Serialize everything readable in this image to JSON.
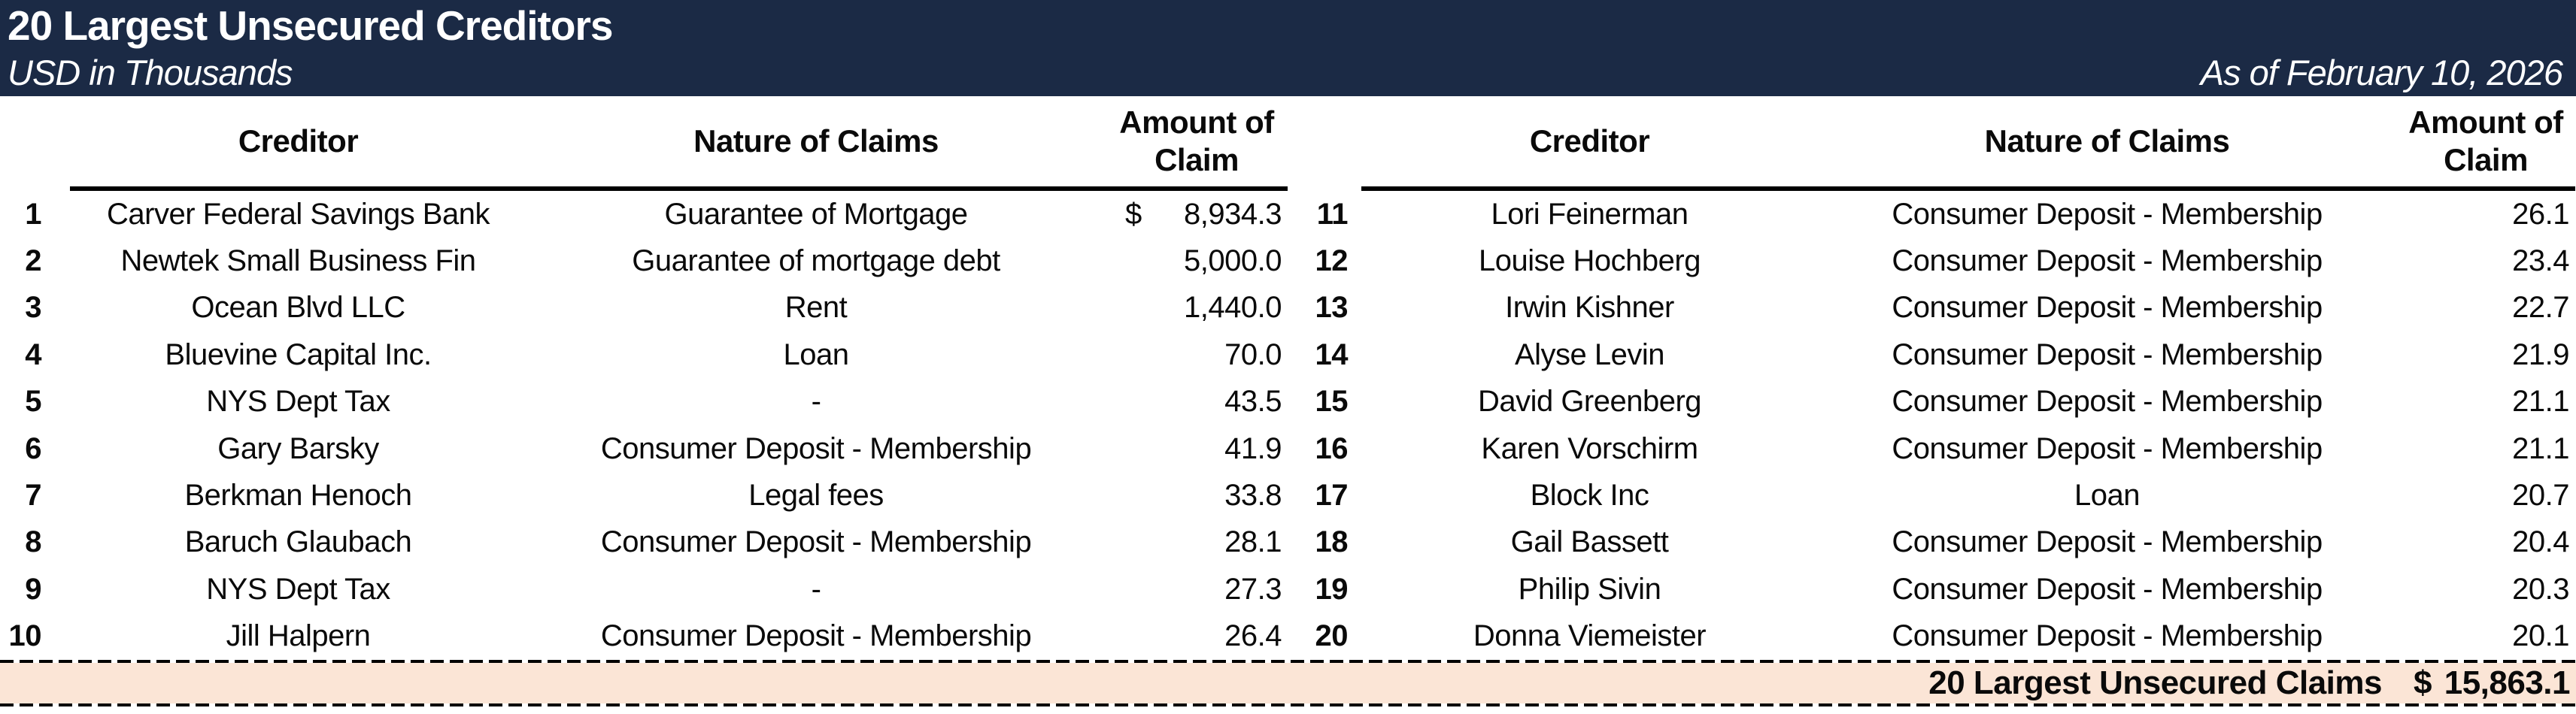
{
  "header": {
    "title": "20 Largest Unsecured Creditors",
    "subtitle": "USD in Thousands",
    "as_of": "As of February 10, 2026"
  },
  "columns": {
    "creditor": "Creditor",
    "nature": "Nature of Claims",
    "amount": "Amount of Claim"
  },
  "left_table": {
    "rows": [
      {
        "num": "1",
        "creditor": "Carver Federal Savings Bank",
        "nature": "Guarantee of Mortgage",
        "cur": "$",
        "amount": "8,934.3"
      },
      {
        "num": "2",
        "creditor": "Newtek Small Business Fin",
        "nature": "Guarantee of mortgage debt",
        "cur": "",
        "amount": "5,000.0"
      },
      {
        "num": "3",
        "creditor": "Ocean Blvd LLC",
        "nature": "Rent",
        "cur": "",
        "amount": "1,440.0"
      },
      {
        "num": "4",
        "creditor": "Bluevine Capital Inc.",
        "nature": "Loan",
        "cur": "",
        "amount": "70.0"
      },
      {
        "num": "5",
        "creditor": "NYS Dept Tax",
        "nature": "-",
        "cur": "",
        "amount": "43.5"
      },
      {
        "num": "6",
        "creditor": "Gary Barsky",
        "nature": "Consumer Deposit - Membership",
        "cur": "",
        "amount": "41.9"
      },
      {
        "num": "7",
        "creditor": "Berkman Henoch",
        "nature": "Legal fees",
        "cur": "",
        "amount": "33.8"
      },
      {
        "num": "8",
        "creditor": "Baruch Glaubach",
        "nature": "Consumer Deposit - Membership",
        "cur": "",
        "amount": "28.1"
      },
      {
        "num": "9",
        "creditor": "NYS Dept Tax",
        "nature": "-",
        "cur": "",
        "amount": "27.3"
      },
      {
        "num": "10",
        "creditor": "Jill Halpern",
        "nature": "Consumer Deposit - Membership",
        "cur": "",
        "amount": "26.4"
      }
    ]
  },
  "right_table": {
    "rows": [
      {
        "num": "11",
        "creditor": "Lori Feinerman",
        "nature": "Consumer Deposit - Membership",
        "cur": "",
        "amount": "26.1"
      },
      {
        "num": "12",
        "creditor": "Louise Hochberg",
        "nature": "Consumer Deposit - Membership",
        "cur": "",
        "amount": "23.4"
      },
      {
        "num": "13",
        "creditor": "Irwin Kishner",
        "nature": "Consumer Deposit - Membership",
        "cur": "",
        "amount": "22.7"
      },
      {
        "num": "14",
        "creditor": "Alyse Levin",
        "nature": "Consumer Deposit - Membership",
        "cur": "",
        "amount": "21.9"
      },
      {
        "num": "15",
        "creditor": "David Greenberg",
        "nature": "Consumer Deposit - Membership",
        "cur": "",
        "amount": "21.1"
      },
      {
        "num": "16",
        "creditor": "Karen Vorschirm",
        "nature": "Consumer Deposit - Membership",
        "cur": "",
        "amount": "21.1"
      },
      {
        "num": "17",
        "creditor": "Block Inc",
        "nature": "Loan",
        "cur": "",
        "amount": "20.7"
      },
      {
        "num": "18",
        "creditor": "Gail Bassett",
        "nature": "Consumer Deposit - Membership",
        "cur": "",
        "amount": "20.4"
      },
      {
        "num": "19",
        "creditor": "Philip Sivin",
        "nature": "Consumer Deposit - Membership",
        "cur": "",
        "amount": "20.3"
      },
      {
        "num": "20",
        "creditor": "Donna Viemeister",
        "nature": "Consumer Deposit - Membership",
        "cur": "",
        "amount": "20.1"
      }
    ]
  },
  "footer": {
    "label": "20 Largest Unsecured Claims",
    "currency": "$",
    "total": "15,863.1"
  },
  "colors": {
    "header_bg": "#1b2a45",
    "footer_bg": "#fbe5d6"
  }
}
